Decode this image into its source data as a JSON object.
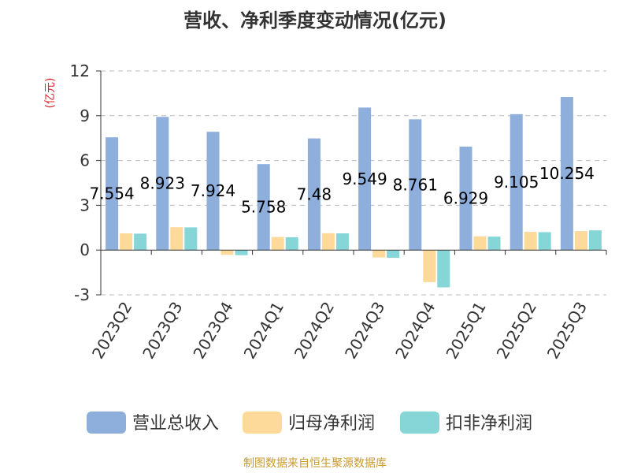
{
  "chart_data": {
    "type": "bar",
    "title": "营收、净利季度变动情况(亿元)",
    "ylabel": "(亿元)",
    "xlabel": "",
    "categories": [
      "2023Q2",
      "2023Q3",
      "2023Q4",
      "2024Q1",
      "2024Q2",
      "2024Q3",
      "2024Q4",
      "2025Q1",
      "2025Q2",
      "2025Q3"
    ],
    "ylim": [
      -3,
      12
    ],
    "yticks": [
      -3,
      0,
      3,
      6,
      9,
      12
    ],
    "grid": true,
    "legend_position": "bottom",
    "series": [
      {
        "name": "营业总收入",
        "color": "#8eaedb",
        "values": [
          7.554,
          8.923,
          7.924,
          5.758,
          7.48,
          9.549,
          8.761,
          6.929,
          9.105,
          10.254
        ],
        "data_labels": [
          "7.554",
          "8.923",
          "7.924",
          "5.758",
          "7.48",
          "9.549",
          "8.761",
          "6.929",
          "9.105",
          "10.254"
        ]
      },
      {
        "name": "归母净利润",
        "color": "#fdd99a",
        "values": [
          1.12,
          1.53,
          -0.32,
          0.88,
          1.13,
          -0.5,
          -2.15,
          0.92,
          1.22,
          1.27
        ]
      },
      {
        "name": "扣非净利润",
        "color": "#86d5d7",
        "values": [
          1.1,
          1.52,
          -0.34,
          0.86,
          1.12,
          -0.52,
          -2.5,
          0.9,
          1.2,
          1.32
        ]
      }
    ]
  },
  "footer": {
    "source": "制图数据来自恒生聚源数据库"
  }
}
